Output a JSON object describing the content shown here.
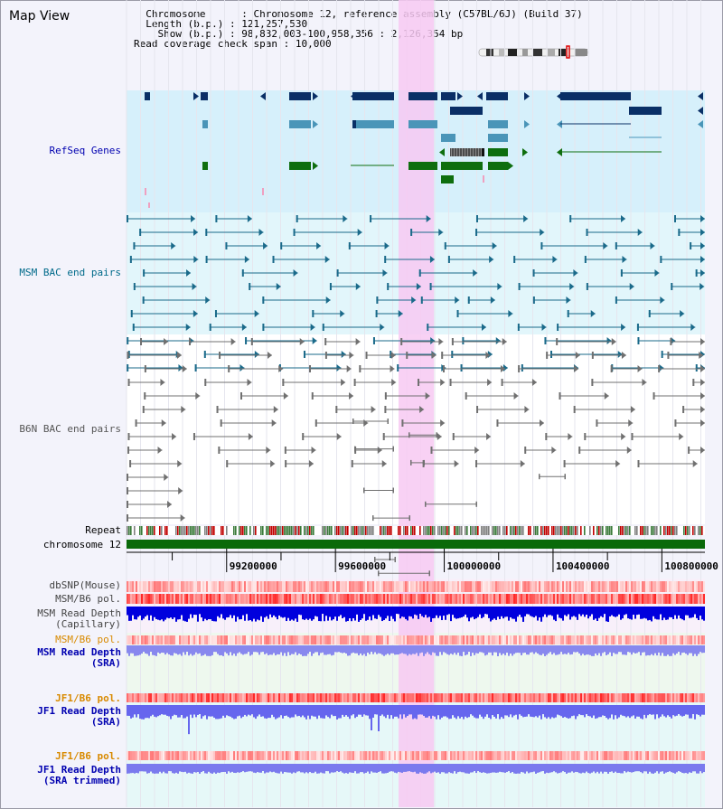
{
  "view_title": "Map View",
  "header": {
    "chromosome_label": "Chromosome",
    "chromosome_value": "Chromosome 12, reference assembly (C57BL/6J) (Build 37)",
    "length_label": "Length (b.p.)",
    "length_value": "121,257,530",
    "show_label": "Show (b.p.)",
    "show_value": "98,832,003-100,958,356 : 2,126,354 bp",
    "coverage_label": "Read coverage check span",
    "coverage_value": "10,000"
  },
  "tracks": {
    "refseq": "RefSeq Genes",
    "msm_bac": "MSM BAC end pairs",
    "b6n_bac": "B6N BAC end pairs",
    "repeat": "Repeat",
    "chromosome": "chromosome 12",
    "dbsnp": "dbSNP(Mouse)",
    "msm_b6_pol": "MSM/B6 pol.",
    "msm_depth_cap_1": "MSM Read Depth",
    "msm_depth_cap_2": "(Capillary)",
    "msm_b6_pol_2": "MSM/B6 pol.",
    "msm_depth_sra_1": "MSM Read Depth",
    "msm_depth_sra_2": "(SRA)",
    "jf1_b6_pol": "JF1/B6 pol.",
    "jf1_depth_sra_1": "JF1 Read Depth",
    "jf1_depth_sra_2": "(SRA)",
    "jf1_b6_pol_2": "JF1/B6 pol.",
    "jf1_depth_trim_1": "JF1 Read Depth",
    "jf1_depth_trim_2": "(SRA trimmed)"
  },
  "axis": {
    "view_start": 98832003,
    "view_end": 100958356,
    "ticks": [
      "99200000",
      "99600000",
      "100000000",
      "100400000",
      "100800000"
    ],
    "highlight_start": 99832000,
    "highlight_end": 99962000
  },
  "colors": {
    "refseq_bg": "#d6f0fb",
    "msm_bg": "#e2f6fb",
    "highlight": "#f7c9f2",
    "dark_gene": "#0a2f66",
    "mid_gene": "#4a95b8",
    "green_gene": "#0e6e0e",
    "msm_pair": "#1a6a8a",
    "b6n_pair": "#707070",
    "orange_label": "#d88a00",
    "blue_label": "#0000b0"
  }
}
